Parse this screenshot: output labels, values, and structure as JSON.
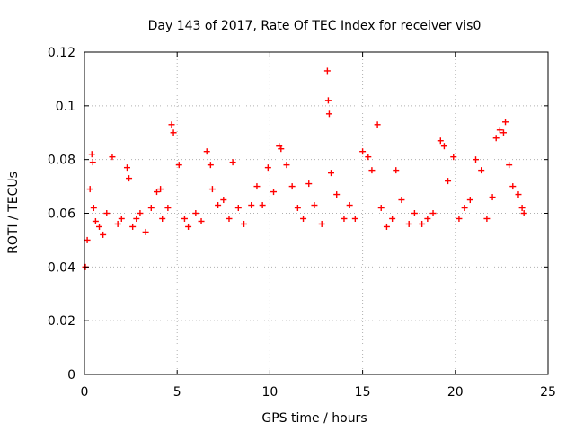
{
  "chart_data": {
    "type": "scatter",
    "title": "Day 143 of 2017, Rate Of TEC Index for receiver vis0",
    "xlabel": "GPS time / hours",
    "ylabel": "ROTI / TECUs",
    "xlim": [
      0,
      25
    ],
    "ylim": [
      0,
      0.12
    ],
    "xticks": [
      0,
      5,
      10,
      15,
      20,
      25
    ],
    "xtick_labels": [
      "0",
      "5",
      "10",
      "15",
      "20",
      "25"
    ],
    "yticks": [
      0,
      0.02,
      0.04,
      0.06,
      0.08,
      0.1,
      0.12
    ],
    "ytick_labels": [
      "0",
      "0.02",
      "0.04",
      "0.06",
      "0.08",
      "0.1",
      "0.12"
    ],
    "grid": true,
    "marker": "plus",
    "series": [
      {
        "name": "ROTI",
        "color": "#ff0000",
        "x": [
          0.05,
          0.15,
          0.3,
          0.4,
          0.45,
          0.5,
          0.6,
          0.8,
          1.0,
          1.2,
          1.5,
          1.8,
          2.0,
          2.3,
          2.4,
          2.6,
          2.8,
          3.0,
          3.3,
          3.6,
          3.9,
          4.1,
          4.2,
          4.5,
          4.7,
          4.8,
          5.1,
          5.4,
          5.6,
          6.0,
          6.3,
          6.6,
          6.8,
          6.9,
          7.2,
          7.5,
          7.8,
          8.0,
          8.3,
          8.6,
          9.0,
          9.3,
          9.6,
          9.9,
          10.2,
          10.5,
          10.6,
          10.9,
          11.2,
          11.5,
          11.8,
          12.1,
          12.4,
          12.8,
          13.1,
          13.15,
          13.2,
          13.3,
          13.6,
          14.0,
          14.3,
          14.6,
          15.0,
          15.3,
          15.5,
          15.8,
          16.0,
          16.3,
          16.6,
          16.8,
          17.1,
          17.5,
          17.8,
          18.2,
          18.5,
          18.8,
          19.2,
          19.4,
          19.6,
          19.9,
          20.2,
          20.5,
          20.8,
          21.1,
          21.4,
          21.7,
          22.0,
          22.2,
          22.4,
          22.6,
          22.7,
          22.9,
          23.1,
          23.4,
          23.6,
          23.7
        ],
        "y": [
          0.04,
          0.05,
          0.069,
          0.082,
          0.079,
          0.062,
          0.057,
          0.055,
          0.052,
          0.06,
          0.081,
          0.056,
          0.058,
          0.077,
          0.073,
          0.055,
          0.058,
          0.06,
          0.053,
          0.062,
          0.068,
          0.069,
          0.058,
          0.062,
          0.093,
          0.09,
          0.078,
          0.058,
          0.055,
          0.06,
          0.057,
          0.083,
          0.078,
          0.069,
          0.063,
          0.065,
          0.058,
          0.079,
          0.062,
          0.056,
          0.063,
          0.07,
          0.063,
          0.077,
          0.068,
          0.085,
          0.084,
          0.078,
          0.07,
          0.062,
          0.058,
          0.071,
          0.063,
          0.056,
          0.113,
          0.102,
          0.097,
          0.075,
          0.067,
          0.058,
          0.063,
          0.058,
          0.083,
          0.081,
          0.076,
          0.093,
          0.062,
          0.055,
          0.058,
          0.076,
          0.065,
          0.056,
          0.06,
          0.056,
          0.058,
          0.06,
          0.087,
          0.085,
          0.072,
          0.081,
          0.058,
          0.062,
          0.065,
          0.08,
          0.076,
          0.058,
          0.066,
          0.088,
          0.091,
          0.09,
          0.094,
          0.078,
          0.07,
          0.067,
          0.062,
          0.06
        ]
      }
    ]
  }
}
